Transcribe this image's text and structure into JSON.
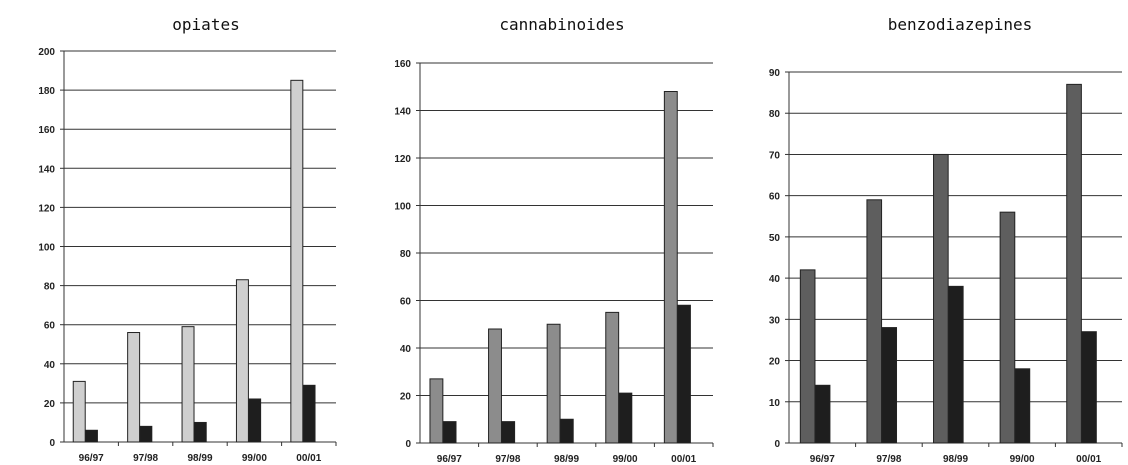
{
  "chart_data": [
    {
      "type": "bar",
      "title": "opiates",
      "categories": [
        "96/97",
        "97/98",
        "98/99",
        "99/00",
        "00/01"
      ],
      "ylim": [
        0,
        200
      ],
      "yticks": [
        0,
        20,
        40,
        60,
        80,
        100,
        120,
        140,
        160,
        180,
        200
      ],
      "grid": true,
      "series": [
        {
          "values": [
            31,
            56,
            59,
            83,
            185
          ],
          "color": "#cfcfcf"
        },
        {
          "values": [
            6,
            8,
            10,
            22,
            29
          ],
          "color": "#1e1e1e"
        }
      ]
    },
    {
      "type": "bar",
      "title": "cannabinoides",
      "categories": [
        "96/97",
        "97/98",
        "98/99",
        "99/00",
        "00/01"
      ],
      "ylim": [
        0,
        160
      ],
      "yticks": [
        0,
        20,
        40,
        60,
        80,
        100,
        120,
        140,
        160
      ],
      "grid": true,
      "series": [
        {
          "values": [
            27,
            48,
            50,
            55,
            148
          ],
          "color": "#8c8c8c"
        },
        {
          "values": [
            9,
            9,
            10,
            21,
            58
          ],
          "color": "#1e1e1e"
        }
      ]
    },
    {
      "type": "bar",
      "title": "benzodiazepines",
      "categories": [
        "96/97",
        "97/98",
        "98/99",
        "99/00",
        "00/01"
      ],
      "ylim": [
        0,
        90
      ],
      "yticks": [
        0,
        10,
        20,
        30,
        40,
        50,
        60,
        70,
        80,
        90
      ],
      "grid": true,
      "series": [
        {
          "values": [
            42,
            59,
            70,
            56,
            87
          ],
          "color": "#5e5e5e"
        },
        {
          "values": [
            14,
            28,
            38,
            18,
            27
          ],
          "color": "#1e1e1e"
        }
      ]
    }
  ]
}
